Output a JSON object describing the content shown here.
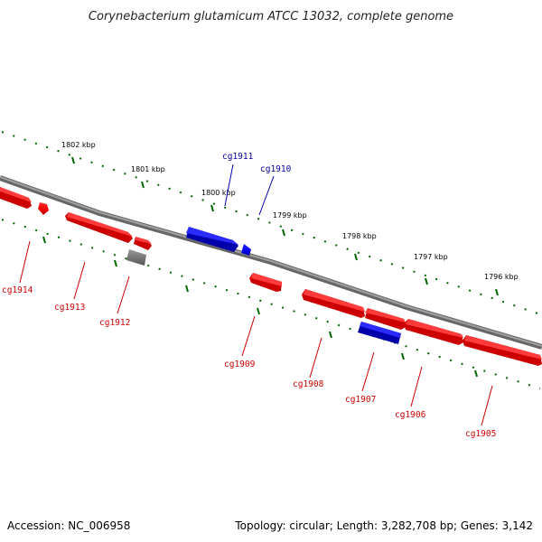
{
  "title": "Corynebacterium glutamicum ATCC 13032, complete genome",
  "accession": "Accession: NC_006958",
  "summary": "Topology: circular; Length: 3,282,708 bp; Genes: 3,142",
  "colors": {
    "forward_gene": "#ff0000",
    "reverse_gene": "#0000ff",
    "other_feature": "#808080",
    "backbone": "#808080",
    "ruler": "#006600",
    "forward_label": "#cc0000",
    "reverse_label": "#000099"
  },
  "scale_ticks": [
    "1802 kbp",
    "1801 kbp",
    "1800 kbp",
    "1799 kbp",
    "1798 kbp",
    "1797 kbp",
    "1796 kbp"
  ],
  "genes": [
    {
      "name": "cg1914",
      "strand": "forward",
      "color": "red"
    },
    {
      "name": "cg1913",
      "strand": "forward",
      "color": "red"
    },
    {
      "name": "cg1912",
      "strand": "forward",
      "color": "red"
    },
    {
      "name": "cg1911",
      "strand": "reverse",
      "color": "blue"
    },
    {
      "name": "cg1910",
      "strand": "reverse",
      "color": "blue"
    },
    {
      "name": "cg1909",
      "strand": "forward",
      "color": "red"
    },
    {
      "name": "cg1908",
      "strand": "forward",
      "color": "red"
    },
    {
      "name": "cg1907",
      "strand": "forward",
      "color": "red"
    },
    {
      "name": "cg1906",
      "strand": "forward",
      "color": "red"
    },
    {
      "name": "cg1905",
      "strand": "forward",
      "color": "red"
    }
  ]
}
